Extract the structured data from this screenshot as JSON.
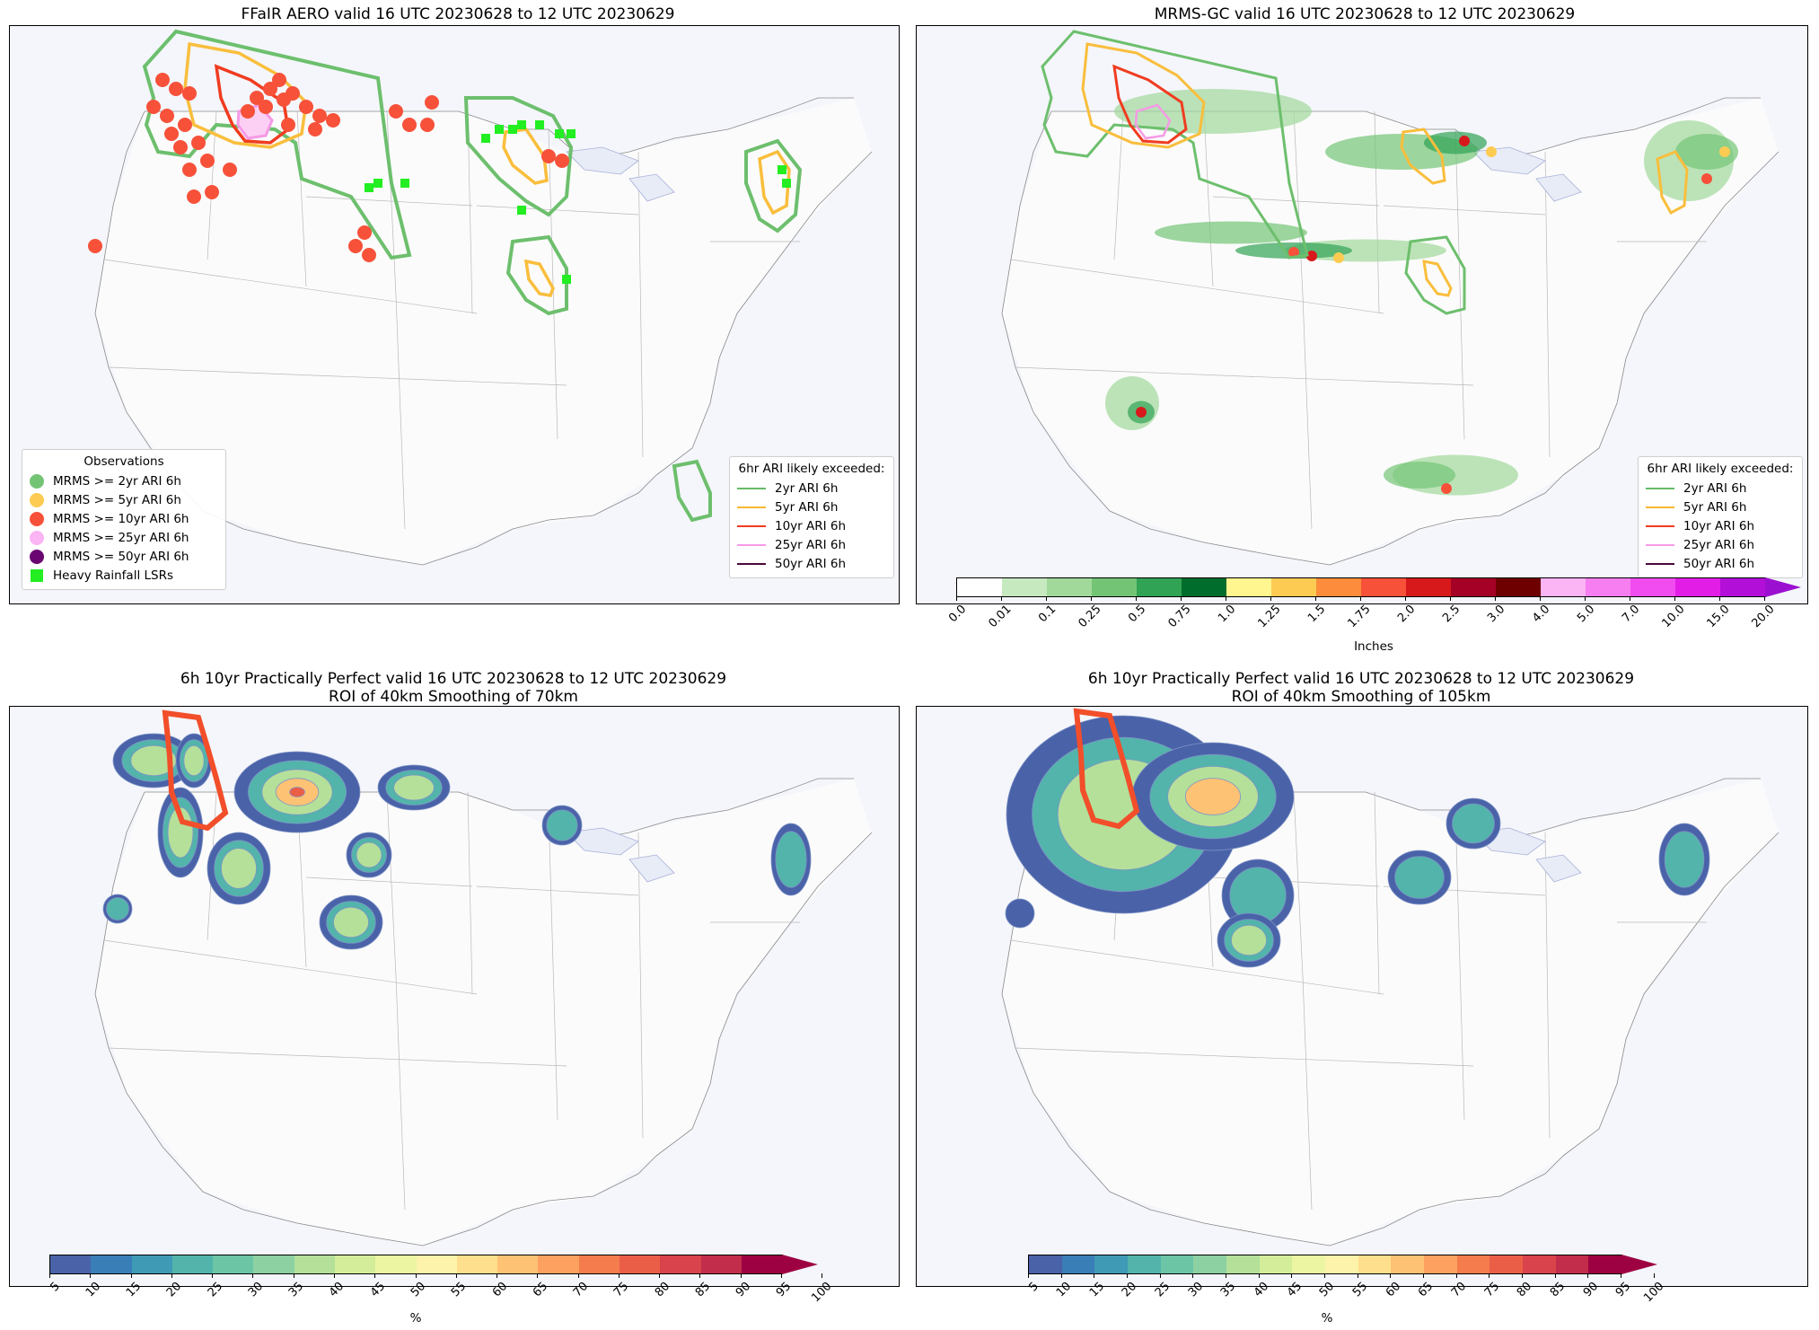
{
  "panels": {
    "p1": {
      "title": "FFaIR AERO valid 16 UTC 20230628 to 12 UTC 20230629"
    },
    "p2": {
      "title": "MRMS-GC valid 16 UTC 20230628 to 12 UTC 20230629"
    },
    "p3": {
      "title_line1": "6h 10yr Practically Perfect valid 16 UTC 20230628 to 12 UTC 20230629",
      "title_line2": "ROI of 40km Smoothing of 70km"
    },
    "p4": {
      "title_line1": "6h 10yr Practically Perfect valid 16 UTC 20230628 to 12 UTC 20230629",
      "title_line2": "ROI of 40km Smoothing of 105km"
    }
  },
  "observations_legend": {
    "title": "Observations",
    "items": [
      {
        "label": "MRMS >= 2yr ARI 6h",
        "color": "#74c476",
        "shape": "circle"
      },
      {
        "label": "MRMS >= 5yr ARI 6h",
        "color": "#fecb52",
        "shape": "circle"
      },
      {
        "label": "MRMS >= 10yr ARI 6h",
        "color": "#f7513a",
        "shape": "circle"
      },
      {
        "label": "MRMS >= 25yr ARI 6h",
        "color": "#fbb4f4",
        "shape": "circle"
      },
      {
        "label": "MRMS >= 50yr ARI 6h",
        "color": "#6a0572",
        "shape": "circle"
      },
      {
        "label": "Heavy Rainfall LSRs",
        "color": "#22ee22",
        "shape": "square"
      }
    ]
  },
  "ari_legend": {
    "title": "6hr ARI likely exceeded:",
    "items": [
      {
        "label": "2yr ARI 6h",
        "color": "#66bb66"
      },
      {
        "label": "5yr ARI 6h",
        "color": "#f7b733"
      },
      {
        "label": "10yr ARI 6h",
        "color": "#f03c20"
      },
      {
        "label": "25yr ARI 6h",
        "color": "#f59ae6"
      },
      {
        "label": "50yr ARI 6h",
        "color": "#4a0a3a"
      }
    ]
  },
  "precip_colorbar": {
    "label": "Inches",
    "ticks": [
      "0.0",
      "0.01",
      "0.1",
      "0.25",
      "0.5",
      "0.75",
      "1.0",
      "1.25",
      "1.5",
      "1.75",
      "2.0",
      "2.5",
      "3.0",
      "4.0",
      "5.0",
      "7.0",
      "10.0",
      "15.0",
      "20.0"
    ],
    "colors": [
      "#ffffff",
      "#c7e9c0",
      "#a1d99b",
      "#74c476",
      "#31a354",
      "#006d2c",
      "#fff68f",
      "#fecb52",
      "#fd8d3c",
      "#f7513a",
      "#d7191c",
      "#a50026",
      "#6e0000",
      "#fbb4f4",
      "#f77ef0",
      "#f04cf0",
      "#e21ee6",
      "#b20fd8"
    ],
    "extend_color": "#9b0fd0"
  },
  "prob_colorbar": {
    "label": "%",
    "ticks": [
      "5",
      "10",
      "15",
      "20",
      "25",
      "30",
      "35",
      "40",
      "45",
      "50",
      "55",
      "60",
      "65",
      "70",
      "75",
      "80",
      "85",
      "90",
      "95",
      "100"
    ],
    "colors": [
      "#4a62a8",
      "#3a7eb8",
      "#3f9ab6",
      "#52b4ab",
      "#6cc5a5",
      "#8dd1a2",
      "#b4e09a",
      "#d4ed9a",
      "#ecf6a2",
      "#fdf3aa",
      "#fedf8d",
      "#fdc274",
      "#fca160",
      "#f57c4d",
      "#ea5e47",
      "#d9434b",
      "#c22d4b",
      "#9e0142"
    ],
    "extend_color": "#9e0142"
  }
}
